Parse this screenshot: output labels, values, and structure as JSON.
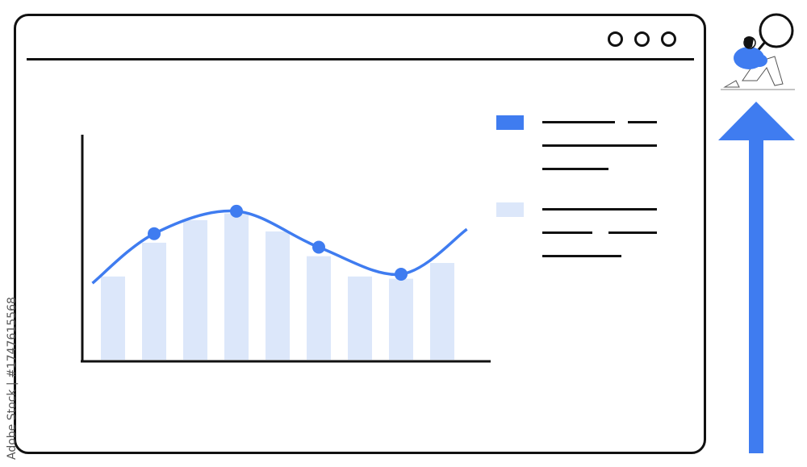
{
  "window": {
    "controls": [
      "circle",
      "circle",
      "circle"
    ]
  },
  "colors": {
    "accent": "#3f7cf0",
    "bar_fill": "#dce7fa",
    "stroke": "#111111"
  },
  "chart_data": {
    "type": "bar",
    "title": "",
    "xlabel": "",
    "ylabel": "",
    "ylim": [
      0,
      100
    ],
    "grid": false,
    "categories": [
      "",
      "",
      "",
      "",
      "",
      "",
      "",
      "",
      ""
    ],
    "values": [
      37,
      52,
      62,
      65,
      57,
      46,
      37,
      36,
      43
    ],
    "trend_line": {
      "x": [
        -0.5,
        1,
        3,
        5,
        7,
        8.6
      ],
      "y": [
        34,
        56,
        66,
        50,
        38,
        58
      ],
      "markers_at": [
        1,
        2,
        3,
        4
      ]
    },
    "legend": {
      "placement": "right",
      "entries": [
        {
          "color": "#3f7cf0"
        },
        {
          "color": "#dce7fa"
        }
      ]
    }
  },
  "decor": {
    "person_icon": "person-with-magnifier-icon",
    "arrow_icon": "arrow-up-icon"
  },
  "watermark": "Adobe Stock | #1747615568"
}
